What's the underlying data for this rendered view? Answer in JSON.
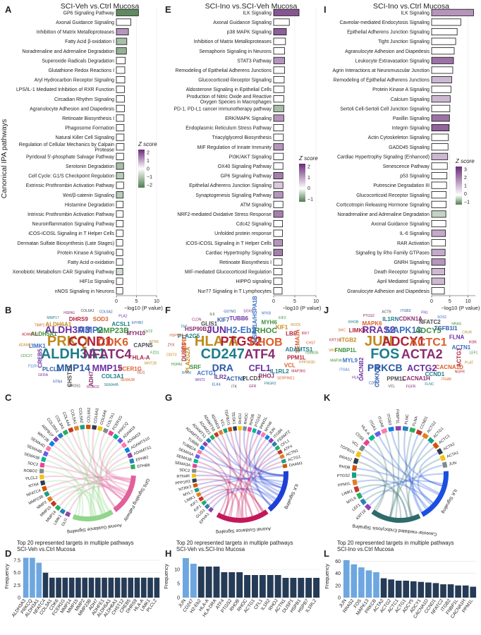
{
  "panel_letters": {
    "A": "A",
    "B": "B",
    "C": "C",
    "D": "D",
    "E": "E",
    "F": "F",
    "G": "G",
    "H": "H",
    "I": "I",
    "J": "J",
    "K": "K",
    "L": "L"
  },
  "columns": [
    {
      "id": "col1",
      "title": "SCI-Veh vs.Ctrl Mucosa"
    },
    {
      "id": "col2",
      "title": "SCI-Ino vs.SCI-Veh Mucosa"
    },
    {
      "id": "col3",
      "title": "SCI-Ino vs.Ctrl Mucosa"
    }
  ],
  "shared": {
    "y_axis_label": "Canonical IPA pathways",
    "x_axis_label": "−log10 (P value)",
    "z_legend_title": "Z score",
    "freq_label": "Frequency",
    "freq_title": "Top 20 represented targets in multiple pathways"
  },
  "chart_data": [
    {
      "type": "bar",
      "id": "A",
      "title": "SCI-Veh vs.Ctrl Mucosa",
      "xlabel": "−log10 (P value)",
      "ylabel": "Canonical IPA pathways",
      "xlim": [
        0,
        10
      ],
      "xticks": [
        0,
        5,
        10
      ],
      "legend": {
        "title": "Z score",
        "ticks": [
          "2",
          "1",
          "0",
          "−1",
          "−2"
        ],
        "placement": "right"
      },
      "categories": [
        "GP6 Signaling Pathway",
        "Axonal Guidance Signaling",
        "Inhibition of Matrix Metalloproteases",
        "Fatty Acid β-oxidation I",
        "Noradrenaline and Adrenaline Degradation",
        "Superoxide Radicals Degradation",
        "Glutathione Redox Reactions I",
        "Aryl Hydrocarbon Receptor Signaling",
        "LPS/IL-1 Mediated Inhibition of RXR Function",
        "Circadian Rhythm Signaling",
        "Agranulocyte Adhesion and Diapedesis",
        "Retinoate Biosynthesis I",
        "Phagosome Formation",
        "Natural Killer Cell Signaling",
        "Regulation of Cellular Mechanics by Calpain Protease",
        "Pyridoxal 5'-phosphate Salvage Pathway",
        "Serotonin Degradation",
        "Cell Cycle: G1/S Checkpoint Regulation",
        "Extrinsic Prothrombin Activation Pathway",
        "Wnt/β-catenin Signaling",
        "Histamine Degradation",
        "Intrinsic Prothrombin Activation Pathway",
        "Neuroinflammation Signaling Pathway",
        "iCOS-iCOSL Signaling in T Helper Cells",
        "Dermatan Sulfate Biosynthesis (Late Stages)",
        "Protein Kinase A Signaling",
        "Fatty Acid α-oxidation",
        "Xenobiotic Metabolism CAR Signaling Pathway",
        "HIF1α Signaling",
        "nNOS Signaling in Neurons"
      ],
      "values": [
        5.5,
        3.6,
        3.0,
        2.6,
        2.5,
        2.2,
        2.1,
        2.1,
        2.0,
        2.0,
        2.0,
        1.9,
        1.9,
        1.9,
        1.9,
        1.8,
        1.8,
        1.8,
        1.8,
        1.7,
        1.7,
        1.7,
        1.7,
        1.7,
        1.6,
        1.6,
        1.6,
        1.6,
        1.6,
        1.6
      ],
      "zscore": [
        -1.8,
        0,
        1.0,
        -1.0,
        -1.2,
        0,
        0,
        0,
        0,
        0,
        0,
        0,
        0,
        0,
        0,
        0,
        -1.0,
        -0.8,
        0,
        -0.8,
        0,
        0,
        0,
        0,
        0,
        0,
        0,
        -0.5,
        0,
        0
      ]
    },
    {
      "type": "bar",
      "id": "E",
      "title": "SCI-Ino vs.SCI-Veh Mucosa",
      "xlabel": "−log10 (P value)",
      "xlim": [
        0,
        10
      ],
      "xticks": [
        0,
        5,
        10
      ],
      "legend": {
        "title": "Z score",
        "ticks": [
          "2",
          "1",
          "0",
          "−1"
        ],
        "placement": "right"
      },
      "categories": [
        "ILK Signaling",
        "Axonal Guidance Signaling",
        "p38 MAPK Signaling",
        "Inhibition of Matrix Metalloproteases",
        "Semaphorin Signaling in Neurons",
        "STAT3 Pathway",
        "Remodeling of Epithelial Adherens Junctions",
        "Glucocorticoid Receptor Signaling",
        "Aldosterone Signaling in Epithelial Cells",
        "Production of Nitric Oxide and Reactive Oxygen Species in Macrophages",
        "PD-1, PD-L1 cancer immunotherapy pathway",
        "ERK/MAPK Signaling",
        "Endoplasmic Reticulum Stress Pathway",
        "Triacylglycerol Biosynthesis",
        "MIF Regulation of Innate Immunity",
        "PI3K/AKT Signaling",
        "OX40 Signaling Pathway",
        "GP6 Signaling Pathway",
        "Epithelial Adherens Junction Signaling",
        "Synaptogenesis Signaling Pathway",
        "ATM Signaling",
        "NRF2-mediated Oxidative Stress Response",
        "Cdc42 Signaling",
        "Unfolded protein response",
        "iCOS-iCOSL Signaling in T Helper Cells",
        "Cardiac Hypertrophy Signaling",
        "Retinoate Biosynthesis I",
        "MIF-mediated Glucocorticoid Regulation",
        "HIPPO signaling",
        "Nur77 Signaling in T Lymphocytes"
      ],
      "values": [
        6.0,
        3.7,
        3.0,
        2.8,
        2.6,
        2.6,
        2.6,
        2.5,
        2.5,
        2.4,
        2.4,
        2.4,
        2.3,
        2.3,
        2.3,
        2.3,
        2.2,
        2.2,
        2.2,
        2.2,
        2.2,
        2.2,
        2.1,
        2.1,
        2.1,
        2.1,
        2.0,
        2.0,
        2.0,
        2.0
      ],
      "zscore": [
        1.6,
        0,
        1.5,
        0,
        0,
        1.0,
        0,
        0,
        0,
        0,
        -1.0,
        1.0,
        0,
        0,
        1.0,
        0,
        0,
        1.2,
        0.5,
        1.0,
        0,
        1.2,
        0,
        0,
        1.0,
        1.2,
        0,
        0,
        0,
        0
      ]
    },
    {
      "type": "bar",
      "id": "I",
      "title": "SCI-Ino vs.Ctrl Mucosa",
      "xlabel": "−log10 (P value)",
      "xlim": [
        0,
        12
      ],
      "xticks": [
        0,
        5,
        10
      ],
      "legend": {
        "title": "Z score",
        "ticks": [
          "3",
          "2",
          "1",
          "0",
          "−1"
        ],
        "placement": "right"
      },
      "categories": [
        "ILK Signaling",
        "Caveolar-mediated Endocytosis Signaling",
        "Epithelial Adherens Junction Signaling",
        "Tight Junction Signaling",
        "Agranulocyte Adhesion and Diapedesis",
        "Leukocyte Extravasation Signaling",
        "Agrin Interactions at Neuromuscular Junction",
        "Remodeling of Epithelial Adherens Junctions",
        "Protein Kinase A Signaling",
        "Calcium Signaling",
        "Sertoli Cell-Sertoli Cell Junction Signaling",
        "Paxillin Signaling",
        "Integrin Signaling",
        "Actin Cytoskeleton Signaling",
        "GADD45 Signaling",
        "Cardiac Hypertrophy Signaling (Enhanced)",
        "Senescence Pathway",
        "p53 Signaling",
        "Putrescine Degradation III",
        "Glucocorticoid Receptor Signaling",
        "Corticotropin Releasing Hormone Signaling",
        "Noradrenaline and Adrenaline Degradation",
        "Axonal Guidance Signaling",
        "IL-6 Signaling",
        "RAR Activation",
        "Signaling by Rho Family GTPases",
        "GNRH Signaling",
        "Death Receptor Signaling",
        "April Mediated Signaling",
        "Granulocyte Adhesion and Diapedesis"
      ],
      "values": [
        11.5,
        8.0,
        7.0,
        6.6,
        6.2,
        6.0,
        5.8,
        5.5,
        5.3,
        5.1,
        5.0,
        4.9,
        4.8,
        4.6,
        4.5,
        4.4,
        4.3,
        4.2,
        4.1,
        4.0,
        4.0,
        3.9,
        3.9,
        3.8,
        3.8,
        3.7,
        3.7,
        3.6,
        3.6,
        3.5
      ],
      "zscore": [
        1.5,
        0,
        0,
        0,
        0,
        2.0,
        0,
        1.0,
        0,
        1.0,
        0,
        2.0,
        2.2,
        0,
        0,
        1.0,
        0,
        0,
        0,
        0,
        0,
        -1.0,
        0,
        1.2,
        0,
        1.2,
        1.5,
        1.0,
        1.0,
        0
      ]
    },
    {
      "type": "bar",
      "id": "D",
      "title": "Top 20 represented targets in multiple pathways",
      "subtitle": "SCI-Veh vs.Ctrl Mucosa",
      "ylabel": "Frequency",
      "ylim": [
        0,
        8.5
      ],
      "yticks": [
        0,
        2.5,
        5.0,
        7.5
      ],
      "ytick_labels": [
        "0",
        "2.5",
        "5.0",
        "7.5"
      ],
      "highlight_count": 3,
      "categories": [
        "ALDH3A3",
        "PRKCQ",
        "ALDH3A1",
        "NFATC4",
        "COL3A1",
        "CDK6",
        "FCER1G",
        "MMP14",
        "MMP15",
        "MMP2",
        "MMP23B",
        "ADH7",
        "ADHFE1",
        "ALDH5A1",
        "ALDH6A1",
        "CHST12",
        "CREB5",
        "DHRS9",
        "HLA-A",
        "LIMK1",
        "PLCL2"
      ],
      "values": [
        8,
        8,
        7,
        5,
        4,
        4,
        4,
        4,
        4,
        4,
        4,
        4,
        4,
        4,
        4,
        4,
        4,
        4,
        4,
        4,
        4
      ]
    },
    {
      "type": "bar",
      "id": "H",
      "title": "Top 20 represented targets in multiple pathways",
      "subtitle": "SCI-Veh vs.SCI-Ino Mucosa",
      "ylabel": "Frequency",
      "ylim": [
        0,
        15
      ],
      "yticks": [
        0,
        5,
        10
      ],
      "ytick_labels": [
        "0",
        "5",
        "10"
      ],
      "highlight_count": 2,
      "categories": [
        "JUN",
        "CD247",
        "H2-Eb2",
        "HLA-A",
        "HLA-DRA",
        "ATF4",
        "PTGS2",
        "RHOB",
        "RHOC",
        "ACTG1",
        "CFL1",
        "IL1R2",
        "RHOJ",
        "ACTN1",
        "DUSP1",
        "HSPB1",
        "HSPB7",
        "IL1RL2"
      ],
      "values": [
        14,
        12,
        11,
        11,
        11,
        9,
        9,
        9,
        8,
        8,
        8,
        8,
        8,
        7,
        7,
        7,
        7,
        7
      ]
    },
    {
      "type": "bar",
      "id": "L",
      "title": "Top 20 represented targets in multiple pathways",
      "subtitle": "SCI-Ino vs.Ctrl Mucosa",
      "ylabel": "Frequency",
      "ylim": [
        0,
        70
      ],
      "yticks": [
        0,
        20,
        40,
        60
      ],
      "ytick_labels": [
        "0",
        "20",
        "40",
        "60"
      ],
      "highlight_count": 5,
      "categories": [
        "JUN",
        "RRAS2",
        "FOS",
        "MAPK13",
        "PRKCB",
        "ACTA2",
        "ACTG2",
        "ACTC1",
        "ACTG1",
        "ADCY5",
        "ADCY1",
        "CACNA1D",
        "CCND1",
        "NFATC2",
        "ITGB2",
        "FNBP1L",
        "CACNA1H",
        "PPM1L"
      ],
      "values": [
        62,
        55,
        50,
        45,
        42,
        32,
        30,
        28,
        28,
        27,
        26,
        25,
        24,
        22,
        22,
        20,
        20,
        18
      ]
    }
  ],
  "wordclouds": {
    "B": {
      "big": [
        "ALDH3A3",
        "PRKQ",
        "ALDH3A1",
        "MMP14",
        "MMP2",
        "CCND1",
        "NFATC4",
        "MMP15",
        "MMP23B",
        "CDK6"
      ],
      "medium": [
        "HLA-A",
        "FCER1G",
        "COL3A1",
        "ADH7",
        "CHST12",
        "PLCL2",
        "CREB5",
        "LIMK1",
        "ALDH5A1",
        "ALDH6A1",
        "DHRS9",
        "SOD3",
        "ACSL1",
        "MYH10",
        "CAPN5"
      ],
      "small": [
        "FZD1",
        "WNT2B",
        "GLI1",
        "SEMA3B",
        "SEMA4B",
        "ROBO2",
        "PROS1",
        "NTN4",
        "GFRA",
        "F11R",
        "CDC27",
        "ADAM19",
        "ADAMTS1",
        "TIMP2",
        "MMP17",
        "HSPA1",
        "COL6A1",
        "COL5A2",
        "PLA2",
        "EPHB2",
        "CNTF",
        "NTRK"
      ]
    },
    "F": {
      "big": [
        "JUN",
        "HLA-A",
        "CD247",
        "DRA",
        "H2-Eb2",
        "PTGS2",
        "ATF4",
        "CFL1",
        "RHOC",
        "RHOB"
      ],
      "medium": [
        "PPM1L",
        "VCL",
        "IL1RL2",
        "RHOJ",
        "PLCD3",
        "ACTN1",
        "ILR2",
        "ACTG1",
        "SRF",
        "PLA2G2A",
        "DUSP1",
        "HSPB1",
        "PLA2G5",
        "HSP90B1",
        "GLIS1",
        "KIF7",
        "TUBB6",
        "HSPA1A/HSPA1B",
        "MYH6",
        "KIF1",
        "LBP",
        "SEMA3A",
        "ADAMTS1"
      ],
      "small": [
        "TUBB2A",
        "PPP1R3D",
        "MAP3K6",
        "SERPINE1",
        "FNGR2",
        "GFR",
        "ITK",
        "ELK4",
        "WNT2",
        "RHOJ",
        "HSPA1",
        "DDIT3",
        "ZYX",
        "HSPB8",
        "TNF",
        "CLDN",
        "IL6",
        "GSTM1",
        "SOX9",
        "NFKB",
        "EIF2",
        "ROCK",
        "IRF7",
        "CHST"
      ]
    },
    "J": {
      "big": [
        "RRAS2",
        "JUN",
        "FOS",
        "PRKCB",
        "MAPK13",
        "ADCY1",
        "ACTA2",
        "ACTG2",
        "ADCY5",
        "ACTC1"
      ],
      "medium": [
        "ACTG1",
        "CACNA1D",
        "CCND1",
        "CACNA1H",
        "PPM1L",
        "CDKN1B",
        "CACNB2",
        "MYL9",
        "FNBP1L",
        "ITGB2",
        "LIMK1",
        "MAPK6",
        "IL1RN",
        "CDKN1A",
        "NFATC2",
        "TGFB1I1",
        "FLNA",
        "ACTN1"
      ],
      "small": [
        "LEF1",
        "PLAT",
        "NGFR",
        "ITGA8",
        "FLNC",
        "FGFR",
        "VCL",
        "CD55",
        "HLA-A",
        "ITGA1",
        "MAP3K",
        "WNT",
        "KRT18",
        "SHC",
        "RHOB",
        "PTGS2",
        "ACTB",
        "ITGB3",
        "FN1",
        "SOS1",
        "NRAS",
        "CHUK",
        "IKBK"
      ]
    },
    "C": {
      "labels": [
        "GLI1",
        "LIMK1",
        "MMP14",
        "MMP15",
        "MMP2",
        "MMP23B",
        "NFATC4",
        "NTN4",
        "PLCL2",
        "ROBO2",
        "SDC2",
        "SEMA3B",
        "SEMA4B",
        "SEMA4D",
        "WNT2B",
        "ARPB1P",
        "COL20A1",
        "COL3A1",
        "COL4A6",
        "COL5A1",
        "COL5A2",
        "COL6A2",
        "COL6A3",
        "COL6A6",
        "COL7A1",
        "FCER1G",
        "PRKCQ",
        "ADAM19",
        "ADAM23",
        "ADAMTS10",
        "ADAMTS1",
        "EPHB2",
        "EPHB6"
      ],
      "hubs": [
        "GP6 Signaling Pathway",
        "Axonal Guidance Signaling"
      ]
    },
    "G": {
      "labels": [
        "EPHA1",
        "GLIS1",
        "KIF1",
        "KIF7",
        "LIMK1",
        "MYL7",
        "NTRK3",
        "PPP1R3",
        "RTN4R",
        "SDC2",
        "SEMA3A",
        "SEMA3B",
        "SEMA5A",
        "TUBB2A",
        "TUBB6",
        "ADAMTS10",
        "ADAMTS1",
        "ADAM23",
        "ADAMTS5",
        "ADAM19",
        "VCL",
        "TGFB1I1",
        "TESK1",
        "RHOJ",
        "RHOC",
        "RHOB",
        "PTGS2",
        "PPM1L",
        "MYH6",
        "JUN",
        "ITGB6",
        "FERMT2",
        "CFL1",
        "ATF4",
        "ACTN1",
        "ACTG1",
        "DAAM1"
      ],
      "hubs": [
        "ILK Signaling",
        "Axonal Guidance Signaling"
      ]
    },
    "K": {
      "labels": [
        "KRT18",
        "LEF1",
        "MYL9",
        "LIMK1",
        "PPM1L",
        "PTGS2",
        "RHOB",
        "RRAS2",
        "TGFB1I1",
        "VCL",
        "CD55",
        "HLA-A",
        "ITGA1",
        "ITGA8",
        "ITGB3",
        "FNBP1L",
        "FLNC",
        "FLNA",
        "CCND1",
        "ACTG2",
        "ACTG1",
        "ACTC1",
        "ACTA2",
        "ACTA1",
        "JUN"
      ],
      "hubs": [
        "ILK Signaling",
        "Caveolar-mediated Endocytosis Signaling"
      ]
    }
  },
  "colors": {
    "neutral_bar": "#ffffff",
    "positive_z": "#6a2a78",
    "negative_z": "#4f7d4f",
    "freq_highlight": "#6ea7e0",
    "freq_base": "#253b56",
    "word_palette": [
      "#6b2fa0",
      "#3a6fc4",
      "#3b8f3b",
      "#c08a1e",
      "#b0233a",
      "#d95f2b",
      "#1e7d8a",
      "#8a2b6e",
      "#4a4a4a",
      "#2a5aa6"
    ]
  }
}
